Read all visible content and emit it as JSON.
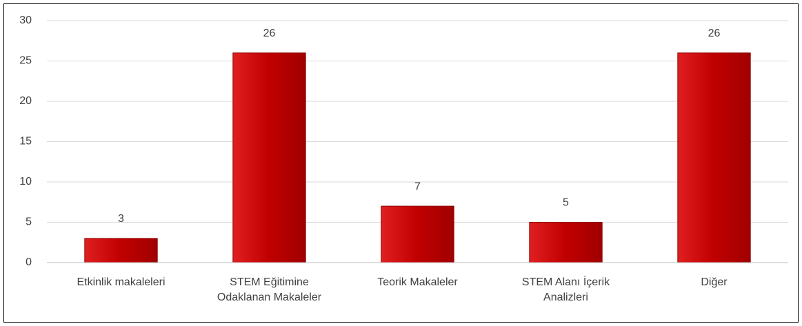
{
  "chart_data": {
    "type": "bar",
    "categories": [
      "Etkinlik makaleleri",
      "STEM Eğitimine Odaklanan Makaleler",
      "Teorik Makaleler",
      "STEM Alanı İçerik Analizleri",
      "Diğer"
    ],
    "values": [
      3,
      26,
      7,
      5,
      26
    ],
    "color": "#c00000",
    "ylim": [
      0,
      30
    ],
    "yticks": [
      0,
      5,
      10,
      15,
      20,
      25,
      30
    ],
    "grid": true
  }
}
